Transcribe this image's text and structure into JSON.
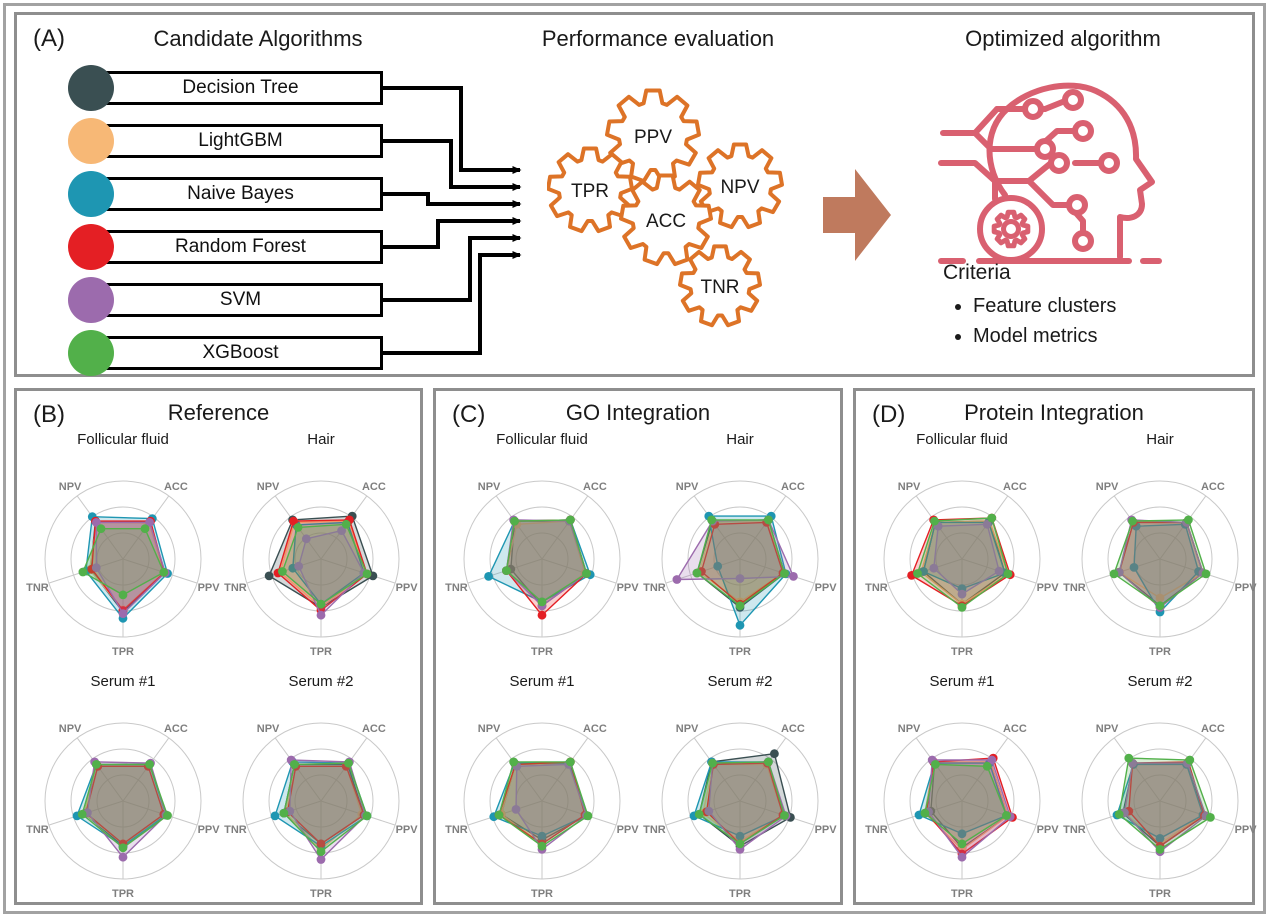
{
  "panel_a": {
    "label": "(A)",
    "columns": {
      "candidates_title": "Candidate Algorithms",
      "evaluation_title": "Performance evaluation",
      "optimized_title": "Optimized algorithm"
    },
    "algorithms": [
      {
        "name": "Decision Tree",
        "color": "#3a4f52"
      },
      {
        "name": "LightGBM",
        "color": "#f7b876"
      },
      {
        "name": "Naive Bayes",
        "color": "#1e96b2"
      },
      {
        "name": "Random Forest",
        "color": "#e41f24"
      },
      {
        "name": "SVM",
        "color": "#9c6bad"
      },
      {
        "name": "XGBoost",
        "color": "#52b04a"
      }
    ],
    "metric_gears": [
      "PPV",
      "TPR",
      "NPV",
      "ACC",
      "TNR"
    ],
    "gear_color": "#dd7327",
    "arrow_color": "#bf7a5e",
    "connector_color": "#000000",
    "head_icon_color": "#d96070",
    "criteria": {
      "title": "Criteria",
      "items": [
        "Feature clusters",
        "Model metrics"
      ]
    }
  },
  "chart_data": {
    "type": "radar",
    "axes": [
      "ACC",
      "PPV",
      "TPR",
      "TNR",
      "NPV"
    ],
    "value_range": [
      0,
      1
    ],
    "grid": {
      "circles": 3,
      "color": "#c9c9c9"
    },
    "series": [
      {
        "name": "Decision Tree",
        "color": "#3a4f52"
      },
      {
        "name": "LightGBM",
        "color": "#f7b876"
      },
      {
        "name": "Naive Bayes",
        "color": "#1e96b2"
      },
      {
        "name": "Random Forest",
        "color": "#e41f24"
      },
      {
        "name": "SVM",
        "color": "#9c6bad"
      },
      {
        "name": "XGBoost",
        "color": "#52b04a"
      }
    ],
    "panels": [
      {
        "label": "(B)",
        "title": "Reference",
        "charts": [
          {
            "title": "Follicular fluid",
            "values": [
              [
                0.58,
                0.56,
                0.68,
                0.44,
                0.6
              ],
              [
                0.57,
                0.55,
                0.65,
                0.45,
                0.58
              ],
              [
                0.64,
                0.6,
                0.76,
                0.5,
                0.67
              ],
              [
                0.6,
                0.56,
                0.66,
                0.42,
                0.6
              ],
              [
                0.58,
                0.57,
                0.7,
                0.36,
                0.58
              ],
              [
                0.48,
                0.55,
                0.46,
                0.54,
                0.48
              ]
            ]
          },
          {
            "title": "Hair",
            "values": [
              [
                0.68,
                0.7,
                0.62,
                0.7,
                0.62
              ],
              [
                0.6,
                0.6,
                0.62,
                0.55,
                0.58
              ],
              [
                0.58,
                0.58,
                0.58,
                0.38,
                0.54
              ],
              [
                0.62,
                0.62,
                0.66,
                0.58,
                0.6
              ],
              [
                0.45,
                0.58,
                0.72,
                0.3,
                0.32
              ],
              [
                0.55,
                0.62,
                0.58,
                0.52,
                0.5
              ]
            ]
          },
          {
            "title": "Serum #1",
            "values": [
              [
                0.58,
                0.58,
                0.58,
                0.52,
                0.58
              ],
              [
                0.58,
                0.58,
                0.55,
                0.52,
                0.58
              ],
              [
                0.58,
                0.58,
                0.58,
                0.62,
                0.58
              ],
              [
                0.55,
                0.55,
                0.55,
                0.5,
                0.55
              ],
              [
                0.6,
                0.58,
                0.72,
                0.48,
                0.62
              ],
              [
                0.58,
                0.6,
                0.6,
                0.55,
                0.58
              ]
            ]
          },
          {
            "title": "Serum #2",
            "values": [
              [
                0.58,
                0.58,
                0.55,
                0.5,
                0.58
              ],
              [
                0.55,
                0.55,
                0.62,
                0.48,
                0.55
              ],
              [
                0.6,
                0.62,
                0.58,
                0.62,
                0.62
              ],
              [
                0.55,
                0.58,
                0.55,
                0.45,
                0.55
              ],
              [
                0.62,
                0.6,
                0.75,
                0.42,
                0.65
              ],
              [
                0.6,
                0.62,
                0.65,
                0.5,
                0.58
              ]
            ]
          }
        ]
      },
      {
        "label": "(C)",
        "title": "GO Integration",
        "charts": [
          {
            "title": "Follicular fluid",
            "values": [
              [
                0.6,
                0.6,
                0.6,
                0.42,
                0.6
              ],
              [
                0.6,
                0.58,
                0.6,
                0.48,
                0.55
              ],
              [
                0.62,
                0.65,
                0.55,
                0.72,
                0.6
              ],
              [
                0.62,
                0.6,
                0.72,
                0.48,
                0.6
              ],
              [
                0.6,
                0.6,
                0.6,
                0.48,
                0.62
              ],
              [
                0.62,
                0.6,
                0.55,
                0.48,
                0.6
              ]
            ]
          },
          {
            "title": "Hair",
            "values": [
              [
                0.62,
                0.6,
                0.62,
                0.58,
                0.6
              ],
              [
                0.6,
                0.58,
                0.55,
                0.55,
                0.58
              ],
              [
                0.68,
                0.62,
                0.85,
                0.3,
                0.68
              ],
              [
                0.58,
                0.58,
                0.58,
                0.52,
                0.55
              ],
              [
                0.62,
                0.72,
                0.25,
                0.85,
                0.6
              ],
              [
                0.62,
                0.6,
                0.6,
                0.58,
                0.62
              ]
            ]
          },
          {
            "title": "Serum #1",
            "values": [
              [
                0.6,
                0.6,
                0.5,
                0.55,
                0.58
              ],
              [
                0.6,
                0.58,
                0.55,
                0.55,
                0.58
              ],
              [
                0.6,
                0.6,
                0.45,
                0.65,
                0.6
              ],
              [
                0.62,
                0.58,
                0.55,
                0.58,
                0.58
              ],
              [
                0.58,
                0.6,
                0.62,
                0.35,
                0.55
              ],
              [
                0.62,
                0.62,
                0.58,
                0.58,
                0.62
              ]
            ]
          },
          {
            "title": "Serum #2",
            "values": [
              [
                0.75,
                0.68,
                0.58,
                0.55,
                0.62
              ],
              [
                0.58,
                0.58,
                0.52,
                0.5,
                0.58
              ],
              [
                0.62,
                0.6,
                0.45,
                0.62,
                0.62
              ],
              [
                0.6,
                0.58,
                0.55,
                0.45,
                0.58
              ],
              [
                0.62,
                0.62,
                0.62,
                0.42,
                0.6
              ],
              [
                0.62,
                0.6,
                0.55,
                0.55,
                0.6
              ]
            ]
          }
        ]
      },
      {
        "label": "(D)",
        "title": "Protein Integration",
        "charts": [
          {
            "title": "Follicular fluid",
            "values": [
              [
                0.6,
                0.58,
                0.58,
                0.52,
                0.58
              ],
              [
                0.6,
                0.62,
                0.58,
                0.55,
                0.58
              ],
              [
                0.58,
                0.58,
                0.38,
                0.52,
                0.58
              ],
              [
                0.65,
                0.65,
                0.6,
                0.68,
                0.62
              ],
              [
                0.55,
                0.5,
                0.45,
                0.38,
                0.52
              ],
              [
                0.65,
                0.62,
                0.62,
                0.6,
                0.6
              ]
            ]
          },
          {
            "title": "Hair",
            "values": [
              [
                0.58,
                0.58,
                0.6,
                0.55,
                0.58
              ],
              [
                0.58,
                0.58,
                0.5,
                0.55,
                0.58
              ],
              [
                0.55,
                0.52,
                0.68,
                0.35,
                0.52
              ],
              [
                0.58,
                0.58,
                0.62,
                0.55,
                0.58
              ],
              [
                0.58,
                0.58,
                0.62,
                0.55,
                0.62
              ],
              [
                0.62,
                0.62,
                0.6,
                0.62,
                0.6
              ]
            ]
          },
          {
            "title": "Serum #1",
            "values": [
              [
                0.62,
                0.62,
                0.6,
                0.42,
                0.6
              ],
              [
                0.62,
                0.62,
                0.62,
                0.5,
                0.62
              ],
              [
                0.6,
                0.6,
                0.42,
                0.58,
                0.6
              ],
              [
                0.68,
                0.68,
                0.68,
                0.48,
                0.62
              ],
              [
                0.65,
                0.65,
                0.72,
                0.45,
                0.65
              ],
              [
                0.55,
                0.6,
                0.55,
                0.5,
                0.58
              ]
            ]
          },
          {
            "title": "Serum #2",
            "values": [
              [
                0.6,
                0.6,
                0.58,
                0.5,
                0.58
              ],
              [
                0.58,
                0.58,
                0.55,
                0.48,
                0.58
              ],
              [
                0.58,
                0.58,
                0.48,
                0.58,
                0.58
              ],
              [
                0.62,
                0.6,
                0.58,
                0.42,
                0.6
              ],
              [
                0.6,
                0.62,
                0.65,
                0.48,
                0.6
              ],
              [
                0.65,
                0.68,
                0.62,
                0.55,
                0.68
              ]
            ]
          }
        ]
      }
    ]
  }
}
